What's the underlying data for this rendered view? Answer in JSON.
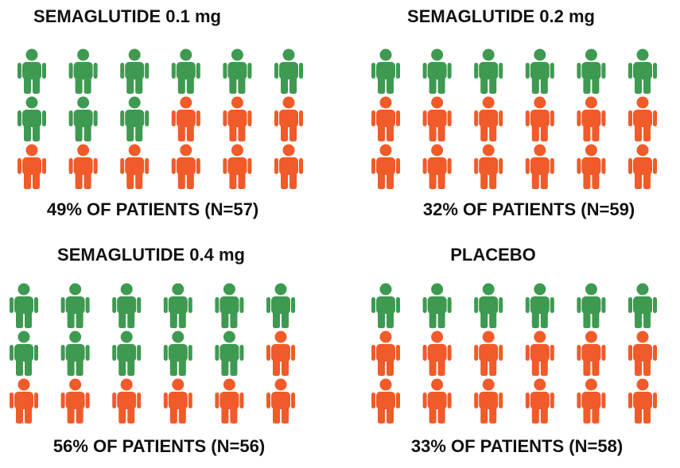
{
  "chart_data": [
    {
      "type": "pictogram",
      "title": "SEMAGLUTIDE 0.1 mg",
      "values": [
        49
      ],
      "value_labels": [
        "49% OF PATIENTS (N=57)"
      ],
      "n": 57,
      "icons": {
        "total": 18,
        "highlighted": 9
      },
      "color": "#3d9a50",
      "other_color": "#f15a29"
    },
    {
      "type": "pictogram",
      "title": "SEMAGLUTIDE 0.2 mg",
      "values": [
        32
      ],
      "value_labels": [
        "32% OF PATIENTS (N=59)"
      ],
      "n": 59,
      "icons": {
        "total": 18,
        "highlighted": 6
      },
      "color": "#3d9a50",
      "other_color": "#f15a29"
    },
    {
      "type": "pictogram",
      "title": "SEMAGLUTIDE 0.4 mg",
      "values": [
        56
      ],
      "value_labels": [
        "56% OF PATIENTS (N=56)"
      ],
      "n": 56,
      "icons": {
        "total": 18,
        "highlighted": 11
      },
      "color": "#3d9a50",
      "other_color": "#f15a29"
    },
    {
      "type": "pictogram",
      "title": "PLACEBO",
      "values": [
        33
      ],
      "value_labels": [
        "33% OF PATIENTS (N=58)"
      ],
      "n": 58,
      "icons": {
        "total": 18,
        "highlighted": 6
      },
      "color": "#3d9a50",
      "other_color": "#f15a29"
    }
  ]
}
